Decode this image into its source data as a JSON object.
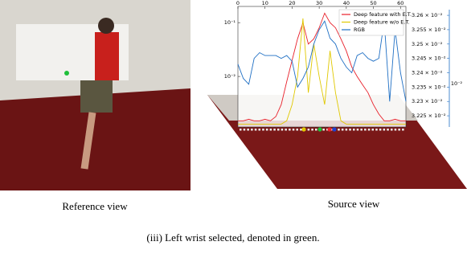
{
  "reference_label": "Reference view",
  "source_label": "Source view",
  "caption": "(iii) Left wrist selected, denoted in green.",
  "chart_data": {
    "type": "line",
    "yscale": "log",
    "x": [
      0,
      2,
      4,
      6,
      8,
      10,
      12,
      14,
      16,
      18,
      20,
      22,
      24,
      26,
      28,
      30,
      32,
      34,
      36,
      38,
      40,
      42,
      44,
      46,
      48,
      50,
      52,
      54,
      56,
      58,
      60,
      62
    ],
    "xlim": [
      0,
      62
    ],
    "xticks": [
      0,
      10,
      20,
      30,
      40,
      50,
      60
    ],
    "ylim": [
      0.00115,
      0.2
    ],
    "yticks": [
      {
        "value": 0.1,
        "label": "10⁻¹"
      },
      {
        "value": 0.01,
        "label": "10⁻²"
      }
    ],
    "y2lim": [
      0.032211,
      0.032631
    ],
    "y2ticks": [
      {
        "value": 0.0326,
        "label": "3.26 × 10⁻²"
      },
      {
        "value": 0.03255,
        "label": "3.255 × 10⁻²"
      },
      {
        "value": 0.0325,
        "label": "3.25 × 10⁻²"
      },
      {
        "value": 0.03245,
        "label": "3.245 × 10⁻²"
      },
      {
        "value": 0.0324,
        "label": "3.24 × 10⁻²"
      },
      {
        "value": 0.03235,
        "label": "3.235 × 10⁻²"
      },
      {
        "value": 0.0323,
        "label": "3.23 × 10⁻²"
      },
      {
        "value": 0.03225,
        "label": "3.225 × 10⁻²"
      }
    ],
    "y2label": "10⁻²",
    "series": [
      {
        "name": "Deep feature with E.T.",
        "color": "#e8202a",
        "values": [
          0.0015,
          0.0015,
          0.0016,
          0.0015,
          0.0015,
          0.0016,
          0.0015,
          0.0018,
          0.003,
          0.008,
          0.02,
          0.05,
          0.1,
          0.04,
          0.05,
          0.08,
          0.15,
          0.1,
          0.08,
          0.05,
          0.03,
          0.015,
          0.01,
          0.007,
          0.005,
          0.003,
          0.002,
          0.0015,
          0.0015,
          0.0016,
          0.0015,
          0.0015
        ]
      },
      {
        "name": "Deep feature w/o E.T.",
        "color": "#e0c800",
        "values": [
          0.0013,
          0.0013,
          0.0013,
          0.0013,
          0.0013,
          0.0013,
          0.0013,
          0.0013,
          0.0013,
          0.0015,
          0.003,
          0.01,
          0.12,
          0.005,
          0.04,
          0.01,
          0.003,
          0.03,
          0.005,
          0.0015,
          0.0013,
          0.0013,
          0.0013,
          0.0013,
          0.0013,
          0.0013,
          0.0013,
          0.0013,
          0.0013,
          0.0013,
          0.0013,
          0.0013
        ]
      },
      {
        "name": "RGB",
        "color": "#1f6fc4",
        "axis": "y2",
        "values": [
          0.03243,
          0.03238,
          0.03236,
          0.03245,
          0.03247,
          0.03246,
          0.03246,
          0.03246,
          0.03245,
          0.03246,
          0.03244,
          0.03235,
          0.03238,
          0.03242,
          0.0325,
          0.03255,
          0.03258,
          0.03252,
          0.0325,
          0.03245,
          0.03242,
          0.0324,
          0.03246,
          0.03247,
          0.03245,
          0.03244,
          0.03245,
          0.03258,
          0.0323,
          0.03255,
          0.0324,
          0.0323
        ]
      }
    ]
  }
}
